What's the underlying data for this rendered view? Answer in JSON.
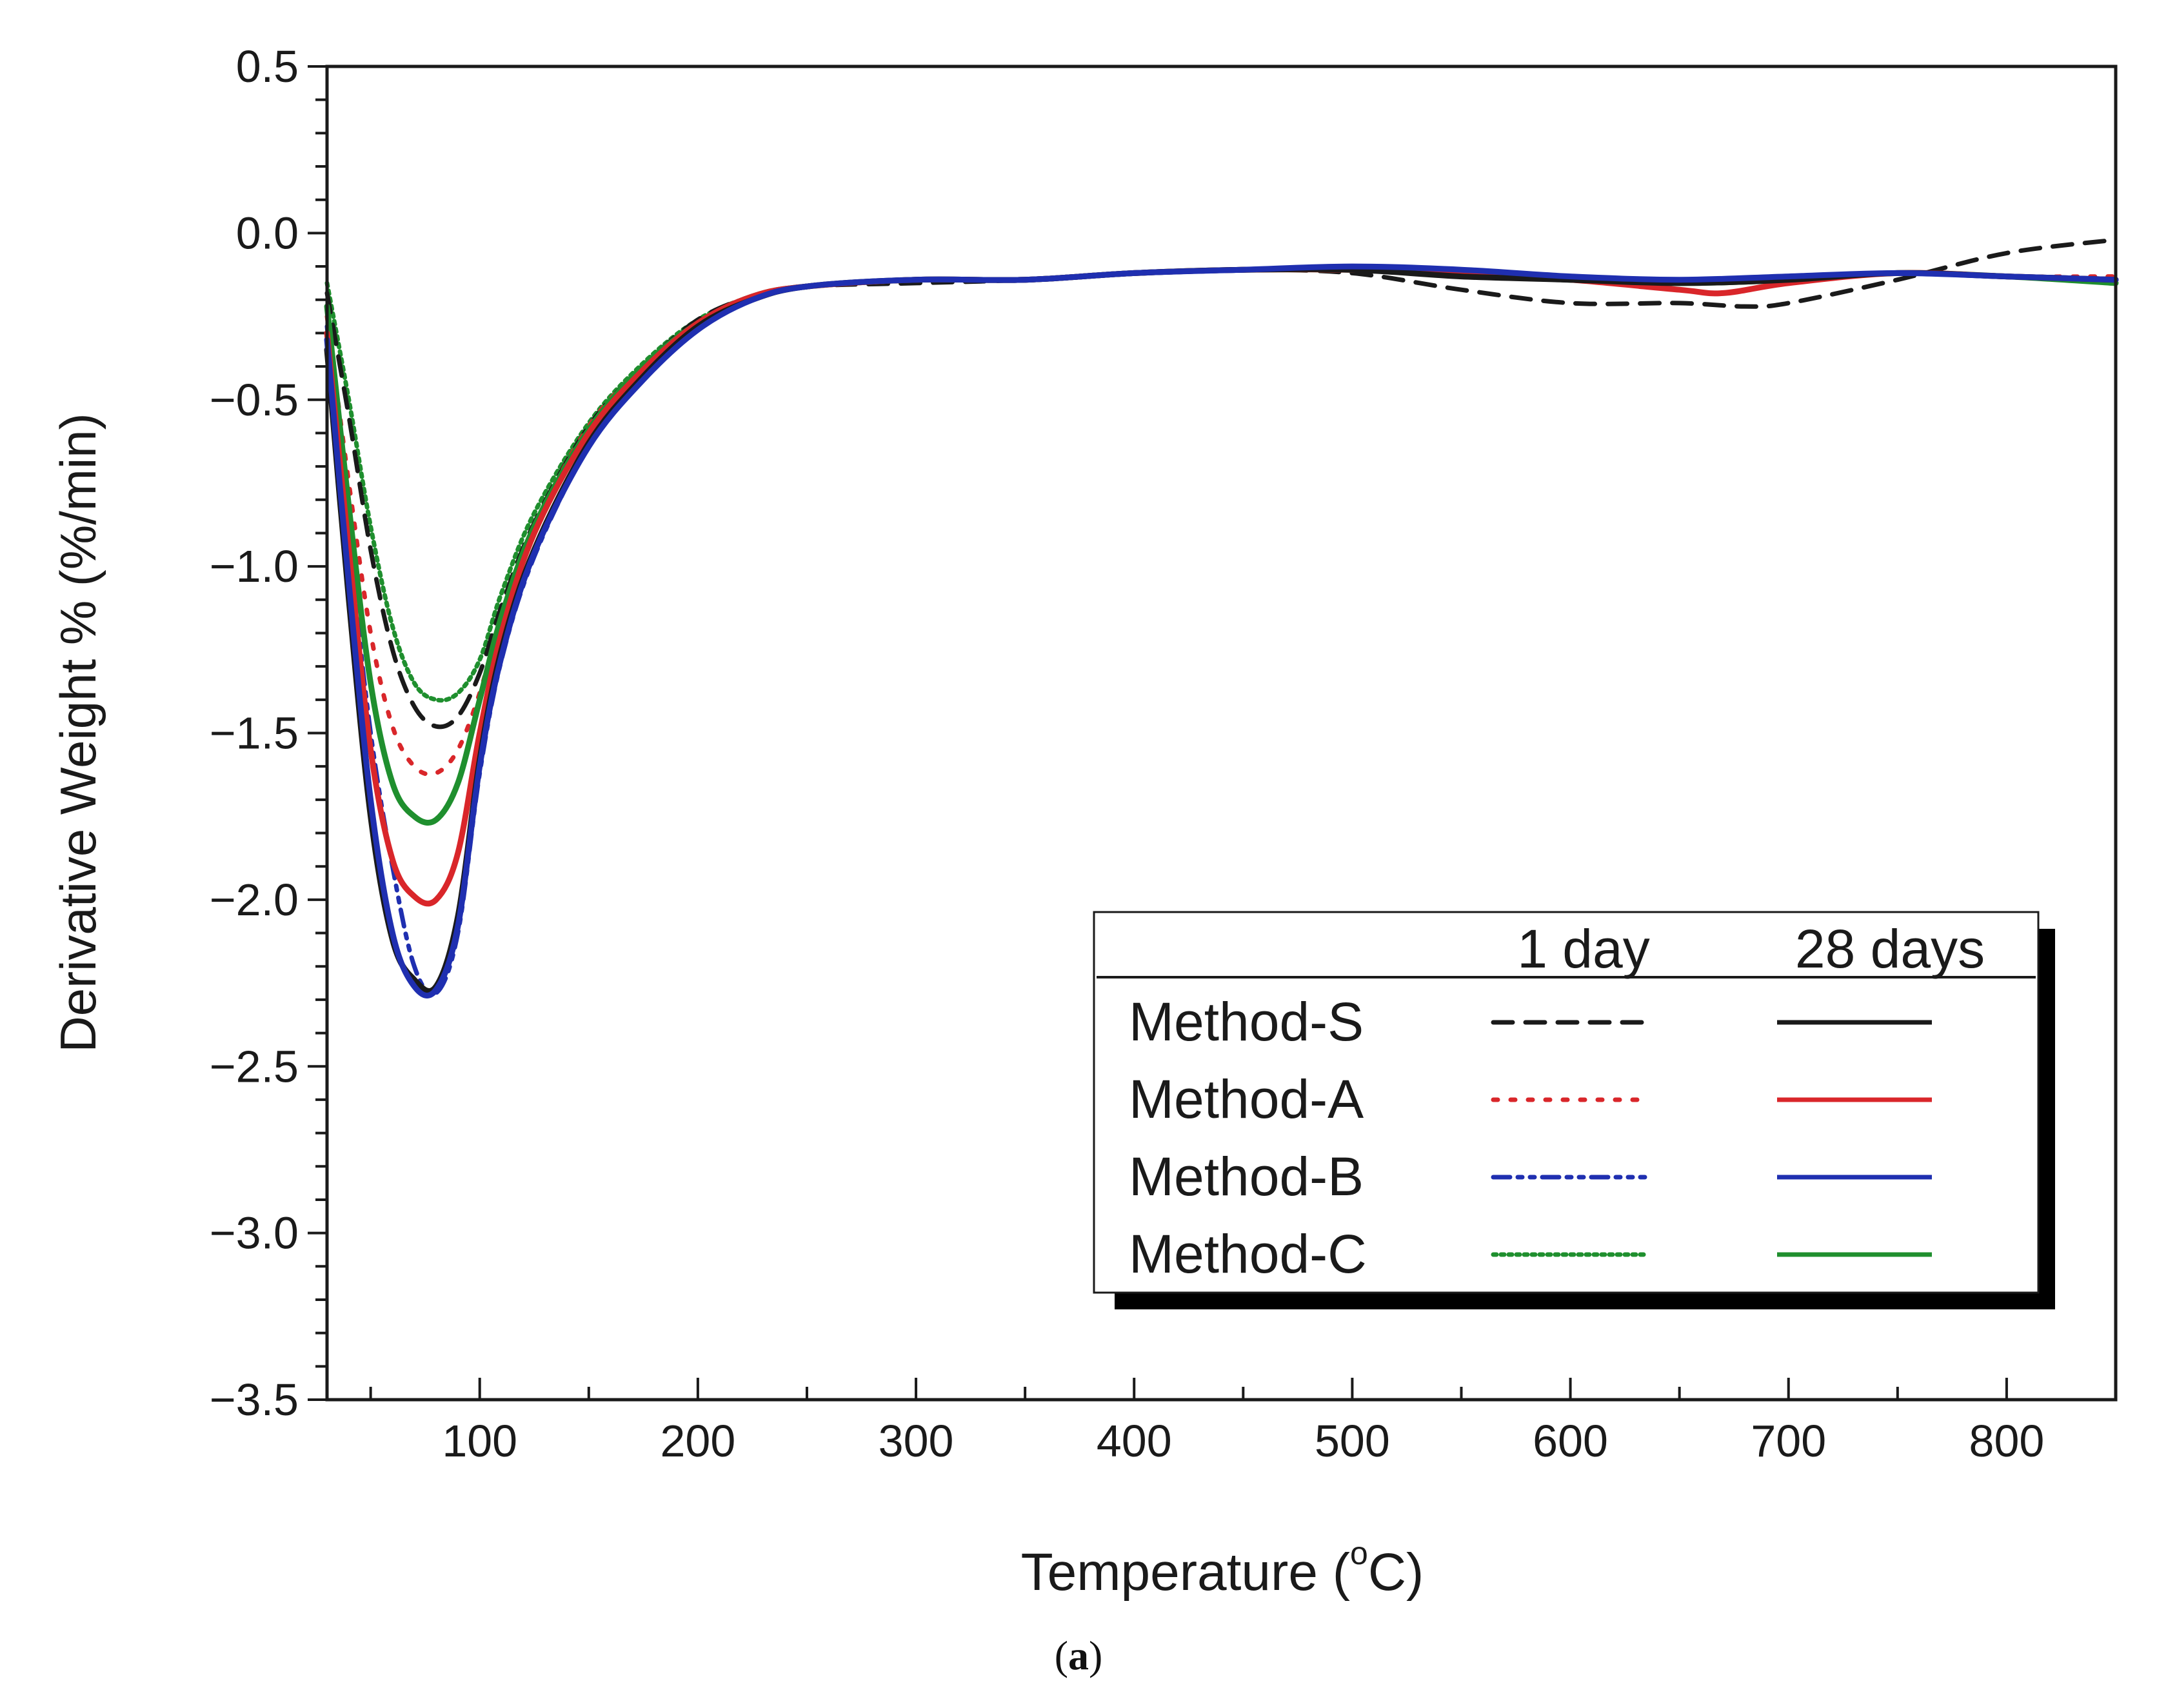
{
  "chart_data": {
    "type": "line",
    "xlabel": "Temperature (",
    "xlabel_sup": "o",
    "xlabel_end": "C)",
    "ylabel": "Derivative Weight % (%/min)",
    "xlim": [
      30,
      850
    ],
    "ylim": [
      -3.5,
      0.5
    ],
    "x_ticks": [
      100,
      200,
      300,
      400,
      500,
      600,
      700,
      800
    ],
    "x_tick_labels": [
      "100",
      "200",
      "300",
      "400",
      "500",
      "600",
      "700",
      "800"
    ],
    "x_minor_step": 50,
    "y_ticks": [
      0.5,
      0.0,
      -0.5,
      -1.0,
      -1.5,
      -2.0,
      -2.5,
      -3.0,
      -3.5
    ],
    "y_tick_labels": [
      "0.5",
      "0.0",
      "−0.5",
      "−1.0",
      "−1.5",
      "−2.0",
      "−2.5",
      "−3.0",
      "−3.5"
    ],
    "y_minor_step": 0.1,
    "legend": {
      "position": "lower-right",
      "col1_header": "1 day",
      "col2_header": "28 days"
    },
    "series": [
      {
        "name": "Method-S",
        "legend_label": "Method-S",
        "age": "1 day",
        "color": "#1a1a1a",
        "dash": "dashed",
        "x": [
          30,
          40,
          50,
          60,
          70,
          80,
          90,
          100,
          110,
          125,
          150,
          175,
          200,
          225,
          250,
          300,
          350,
          400,
          450,
          500,
          550,
          600,
          650,
          680,
          700,
          750,
          800,
          850
        ],
        "y": [
          -0.18,
          -0.55,
          -0.95,
          -1.25,
          -1.42,
          -1.48,
          -1.45,
          -1.32,
          -1.12,
          -0.87,
          -0.58,
          -0.4,
          -0.26,
          -0.19,
          -0.16,
          -0.15,
          -0.14,
          -0.12,
          -0.11,
          -0.12,
          -0.17,
          -0.21,
          -0.21,
          -0.22,
          -0.21,
          -0.14,
          -0.06,
          -0.02
        ]
      },
      {
        "name": "Method-S",
        "legend_label": "Method-S",
        "age": "28 days",
        "color": "#1a1a1a",
        "dash": "solid",
        "x": [
          30,
          40,
          50,
          60,
          70,
          80,
          90,
          100,
          110,
          125,
          150,
          175,
          200,
          225,
          250,
          300,
          350,
          400,
          450,
          500,
          550,
          600,
          650,
          700,
          750,
          800,
          850
        ],
        "y": [
          -0.35,
          -1.1,
          -1.75,
          -2.12,
          -2.24,
          -2.26,
          -2.05,
          -1.58,
          -1.25,
          -0.95,
          -0.63,
          -0.43,
          -0.28,
          -0.2,
          -0.16,
          -0.14,
          -0.14,
          -0.12,
          -0.11,
          -0.11,
          -0.13,
          -0.14,
          -0.15,
          -0.14,
          -0.12,
          -0.13,
          -0.14
        ]
      },
      {
        "name": "Method-A",
        "legend_label": "Method-A",
        "age": "1 day",
        "color": "#d9262a",
        "dash": "dotted",
        "x": [
          30,
          40,
          50,
          60,
          70,
          80,
          90,
          100,
          110,
          125,
          150,
          175,
          200,
          225,
          250,
          300,
          350,
          400,
          450,
          500,
          550,
          600,
          650,
          700,
          750,
          800,
          850
        ],
        "y": [
          -0.25,
          -0.75,
          -1.2,
          -1.48,
          -1.6,
          -1.62,
          -1.55,
          -1.38,
          -1.15,
          -0.88,
          -0.58,
          -0.4,
          -0.27,
          -0.19,
          -0.16,
          -0.14,
          -0.14,
          -0.12,
          -0.11,
          -0.11,
          -0.12,
          -0.14,
          -0.15,
          -0.14,
          -0.12,
          -0.13,
          -0.13
        ]
      },
      {
        "name": "Method-A",
        "legend_label": "Method-A",
        "age": "28 days",
        "color": "#d9262a",
        "dash": "solid",
        "x": [
          30,
          40,
          50,
          60,
          70,
          80,
          90,
          100,
          110,
          125,
          150,
          175,
          200,
          225,
          250,
          300,
          350,
          400,
          450,
          500,
          550,
          600,
          650,
          670,
          700,
          750,
          800,
          850
        ],
        "y": [
          -0.3,
          -0.95,
          -1.55,
          -1.88,
          -1.99,
          -2.0,
          -1.86,
          -1.5,
          -1.2,
          -0.9,
          -0.6,
          -0.41,
          -0.27,
          -0.19,
          -0.16,
          -0.14,
          -0.14,
          -0.12,
          -0.11,
          -0.11,
          -0.12,
          -0.14,
          -0.17,
          -0.18,
          -0.15,
          -0.12,
          -0.13,
          -0.14
        ]
      },
      {
        "name": "Method-B",
        "legend_label": "Method-B",
        "age": "1 day",
        "color": "#1f2fb0",
        "dash": "dashdot",
        "x": [
          30,
          40,
          50,
          60,
          70,
          80,
          90,
          100,
          110,
          125,
          150,
          175,
          200,
          225,
          250,
          300,
          350,
          400,
          450,
          500,
          550,
          600,
          650,
          700,
          750,
          800,
          850
        ],
        "y": [
          -0.28,
          -0.92,
          -1.5,
          -1.9,
          -2.2,
          -2.28,
          -2.1,
          -1.62,
          -1.28,
          -0.97,
          -0.64,
          -0.44,
          -0.29,
          -0.2,
          -0.16,
          -0.14,
          -0.14,
          -0.12,
          -0.11,
          -0.1,
          -0.11,
          -0.13,
          -0.14,
          -0.13,
          -0.12,
          -0.13,
          -0.14
        ]
      },
      {
        "name": "Method-B",
        "legend_label": "Method-B",
        "age": "28 days",
        "color": "#1f2fb0",
        "dash": "solid",
        "x": [
          30,
          40,
          50,
          60,
          70,
          80,
          90,
          100,
          110,
          125,
          150,
          175,
          200,
          225,
          250,
          300,
          350,
          400,
          450,
          500,
          550,
          600,
          650,
          700,
          750,
          800,
          850
        ],
        "y": [
          -0.32,
          -1.05,
          -1.7,
          -2.1,
          -2.26,
          -2.27,
          -2.08,
          -1.6,
          -1.27,
          -0.96,
          -0.64,
          -0.44,
          -0.29,
          -0.2,
          -0.16,
          -0.14,
          -0.14,
          -0.12,
          -0.11,
          -0.1,
          -0.11,
          -0.13,
          -0.14,
          -0.13,
          -0.12,
          -0.13,
          -0.14
        ]
      },
      {
        "name": "Method-C",
        "legend_label": "Method-C",
        "age": "1 day",
        "color": "#1f8f2e",
        "dash": "finedot",
        "x": [
          30,
          40,
          50,
          60,
          70,
          80,
          90,
          100,
          110,
          125,
          150,
          175,
          200,
          225,
          250,
          300,
          350,
          400,
          450,
          500,
          550,
          600,
          650,
          700,
          750,
          800,
          850
        ],
        "y": [
          -0.15,
          -0.5,
          -0.88,
          -1.18,
          -1.35,
          -1.4,
          -1.38,
          -1.28,
          -1.08,
          -0.84,
          -0.57,
          -0.39,
          -0.26,
          -0.19,
          -0.16,
          -0.14,
          -0.14,
          -0.12,
          -0.11,
          -0.11,
          -0.12,
          -0.14,
          -0.15,
          -0.14,
          -0.12,
          -0.13,
          -0.14
        ]
      },
      {
        "name": "Method-C",
        "legend_label": "Method-C",
        "age": "28 days",
        "color": "#1f8f2e",
        "dash": "solid",
        "x": [
          30,
          40,
          50,
          60,
          70,
          80,
          90,
          100,
          110,
          125,
          150,
          175,
          200,
          225,
          250,
          300,
          350,
          400,
          450,
          500,
          550,
          600,
          650,
          700,
          750,
          800,
          850
        ],
        "y": [
          -0.22,
          -0.82,
          -1.35,
          -1.65,
          -1.75,
          -1.76,
          -1.65,
          -1.4,
          -1.15,
          -0.88,
          -0.59,
          -0.4,
          -0.27,
          -0.19,
          -0.16,
          -0.14,
          -0.14,
          -0.12,
          -0.11,
          -0.11,
          -0.12,
          -0.14,
          -0.15,
          -0.14,
          -0.12,
          -0.13,
          -0.15
        ]
      }
    ]
  },
  "caption": {
    "open": "(",
    "letter": "a",
    "close": ")"
  }
}
